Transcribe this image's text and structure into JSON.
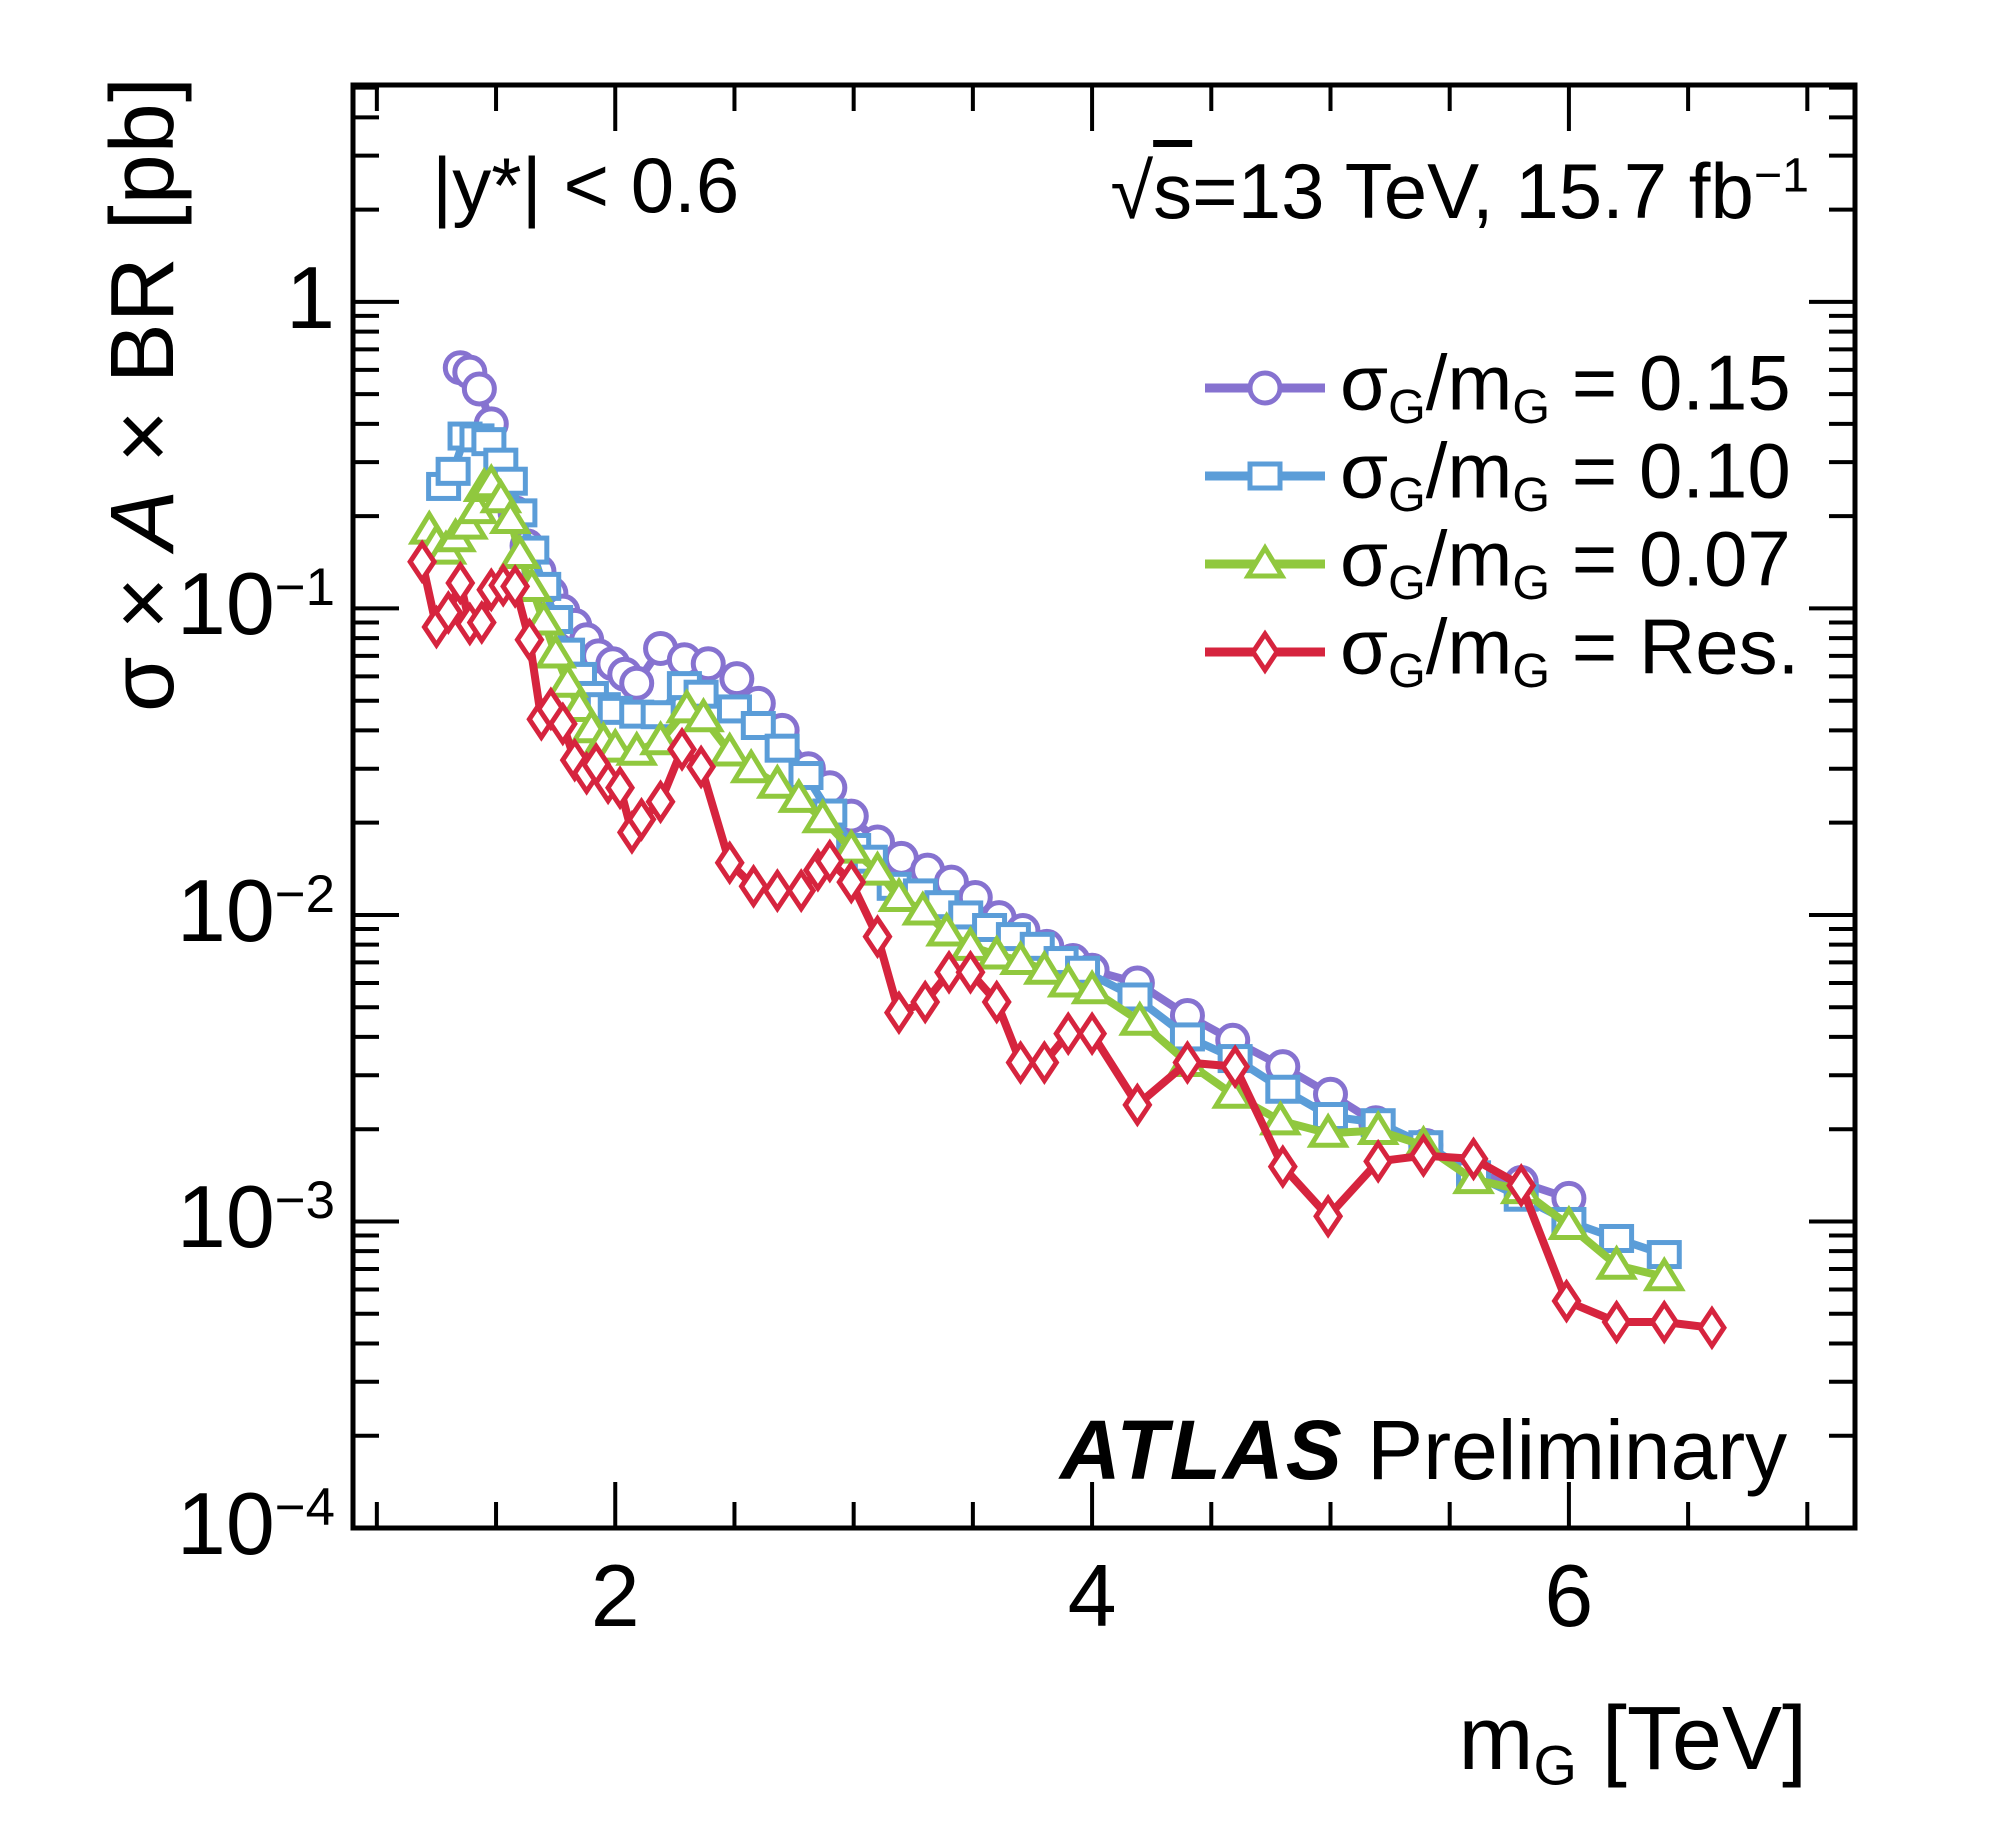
{
  "labels": {
    "y_title_sigma": "σ × ",
    "y_title_A": "A",
    "y_title_rest": " × BR [pb]",
    "x_title_m": "m",
    "x_title_sub": "G",
    "x_title_rest": " [TeV]",
    "rapidity": "|y*| < 0.6",
    "energy_sqrt": "√",
    "energy_s": "s",
    "energy_rest": "=13 TeV, 15.7 fb",
    "energy_exp": "−1",
    "atlas": "ATLAS",
    "preliminary": "Preliminary",
    "legend_parts": {
      "sigma": "σ",
      "sub": "G",
      "slash": "/m",
      "eq": " = "
    },
    "x_ticks": [
      "2",
      "4",
      "6"
    ],
    "y_ticks": [
      {
        "base": "1",
        "exp": "",
        "value": 1
      },
      {
        "base": "10",
        "exp": "−1",
        "value": 0.1
      },
      {
        "base": "10",
        "exp": "−2",
        "value": 0.01
      },
      {
        "base": "10",
        "exp": "−3",
        "value": 0.001
      },
      {
        "base": "10",
        "exp": "−4",
        "value": 0.0001
      }
    ]
  },
  "chart_data": {
    "type": "line",
    "title": "",
    "xlabel": "mG [TeV]",
    "ylabel": "σ × A × BR [pb]",
    "annotations": [
      "|y*| < 0.6",
      "√s=13 TeV, 15.7 fb−1",
      "ATLAS Preliminary"
    ],
    "legend_position": "upper right",
    "grid": false,
    "x_axis": {
      "scale": "linear",
      "range": [
        0.9,
        7.2
      ],
      "major_ticks": [
        2,
        4,
        6
      ],
      "minor_ticks": [
        1.0,
        1.5,
        2.5,
        3.0,
        3.5,
        4.5,
        5.0,
        5.5,
        6.5,
        7.0
      ]
    },
    "y_axis": {
      "scale": "log",
      "range": [
        0.0001,
        5.1
      ],
      "major_ticks": [
        1,
        0.1,
        0.01,
        0.001,
        0.0001
      ]
    },
    "series": [
      {
        "name": "σG/mG = 0.15",
        "value_label": "0.15",
        "marker": "circle",
        "color": "#8672D0",
        "points": [
          [
            1.35,
            0.61
          ],
          [
            1.39,
            0.59
          ],
          [
            1.43,
            0.52
          ],
          [
            1.48,
            0.4
          ],
          [
            1.53,
            0.27
          ],
          [
            1.58,
            0.205
          ],
          [
            1.63,
            0.16
          ],
          [
            1.68,
            0.132
          ],
          [
            1.73,
            0.112
          ],
          [
            1.78,
            0.098
          ],
          [
            1.83,
            0.088
          ],
          [
            1.88,
            0.079
          ],
          [
            1.93,
            0.07
          ],
          [
            1.99,
            0.066
          ],
          [
            2.04,
            0.061
          ],
          [
            2.09,
            0.057
          ],
          [
            2.19,
            0.074
          ],
          [
            2.29,
            0.068
          ],
          [
            2.39,
            0.066
          ],
          [
            2.51,
            0.059
          ],
          [
            2.6,
            0.049
          ],
          [
            2.7,
            0.04
          ],
          [
            2.81,
            0.03
          ],
          [
            2.9,
            0.026
          ],
          [
            2.99,
            0.021
          ],
          [
            3.1,
            0.0173
          ],
          [
            3.2,
            0.0153
          ],
          [
            3.31,
            0.014
          ],
          [
            3.41,
            0.0128
          ],
          [
            3.51,
            0.0114
          ],
          [
            3.61,
            0.0098
          ],
          [
            3.71,
            0.0089
          ],
          [
            3.81,
            0.0079
          ],
          [
            3.92,
            0.0071
          ],
          [
            4.0,
            0.0066
          ],
          [
            4.19,
            0.006
          ],
          [
            4.4,
            0.0047
          ],
          [
            4.59,
            0.0039
          ],
          [
            4.8,
            0.0032
          ],
          [
            5.0,
            0.0026
          ],
          [
            5.19,
            0.0021
          ],
          [
            5.4,
            0.00177
          ],
          [
            5.6,
            0.00142
          ],
          [
            5.8,
            0.00134
          ],
          [
            6.0,
            0.00119
          ]
        ]
      },
      {
        "name": "σG/mG = 0.10",
        "value_label": "0.10",
        "marker": "square",
        "color": "#5B9DD8",
        "points": [
          [
            1.28,
            0.25
          ],
          [
            1.32,
            0.28
          ],
          [
            1.37,
            0.365
          ],
          [
            1.42,
            0.36
          ],
          [
            1.47,
            0.35
          ],
          [
            1.52,
            0.3
          ],
          [
            1.56,
            0.26
          ],
          [
            1.6,
            0.205
          ],
          [
            1.65,
            0.155
          ],
          [
            1.7,
            0.118
          ],
          [
            1.75,
            0.092
          ],
          [
            1.8,
            0.072
          ],
          [
            1.85,
            0.06
          ],
          [
            1.9,
            0.052
          ],
          [
            1.95,
            0.0478
          ],
          [
            2.0,
            0.0465
          ],
          [
            2.09,
            0.0452
          ],
          [
            2.18,
            0.045
          ],
          [
            2.29,
            0.056
          ],
          [
            2.36,
            0.0525
          ],
          [
            2.5,
            0.047
          ],
          [
            2.6,
            0.0415
          ],
          [
            2.7,
            0.035
          ],
          [
            2.8,
            0.0285
          ],
          [
            2.9,
            0.0215
          ],
          [
            3.0,
            0.0166
          ],
          [
            3.07,
            0.0152
          ],
          [
            3.17,
            0.0124
          ],
          [
            3.28,
            0.0118
          ],
          [
            3.37,
            0.0108
          ],
          [
            3.47,
            0.01
          ],
          [
            3.57,
            0.0091
          ],
          [
            3.67,
            0.0085
          ],
          [
            3.77,
            0.0079
          ],
          [
            3.87,
            0.0071
          ],
          [
            3.96,
            0.0066
          ],
          [
            4.18,
            0.0054
          ],
          [
            4.4,
            0.004
          ],
          [
            4.6,
            0.0034
          ],
          [
            4.8,
            0.0027
          ],
          [
            5.0,
            0.0022
          ],
          [
            5.2,
            0.0021
          ],
          [
            5.4,
            0.00178
          ],
          [
            5.6,
            0.00142
          ],
          [
            5.8,
            0.0012
          ],
          [
            6.0,
            0.001
          ],
          [
            6.2,
            0.00088
          ],
          [
            6.4,
            0.00078
          ]
        ]
      },
      {
        "name": "σG/mG = 0.07",
        "value_label": "0.07",
        "marker": "triangle",
        "color": "#90C83E",
        "points": [
          [
            1.22,
            0.18
          ],
          [
            1.25,
            0.163
          ],
          [
            1.29,
            0.155
          ],
          [
            1.33,
            0.17
          ],
          [
            1.38,
            0.187
          ],
          [
            1.42,
            0.21
          ],
          [
            1.45,
            0.248
          ],
          [
            1.48,
            0.255
          ],
          [
            1.52,
            0.228
          ],
          [
            1.56,
            0.195
          ],
          [
            1.6,
            0.15
          ],
          [
            1.65,
            0.117
          ],
          [
            1.7,
            0.091
          ],
          [
            1.75,
            0.071
          ],
          [
            1.8,
            0.057
          ],
          [
            1.85,
            0.0475
          ],
          [
            1.9,
            0.0405
          ],
          [
            1.95,
            0.0368
          ],
          [
            2.0,
            0.035
          ],
          [
            2.09,
            0.0342
          ],
          [
            2.19,
            0.037
          ],
          [
            2.3,
            0.047
          ],
          [
            2.37,
            0.044
          ],
          [
            2.48,
            0.034
          ],
          [
            2.57,
            0.03
          ],
          [
            2.68,
            0.0267
          ],
          [
            2.77,
            0.024
          ],
          [
            2.87,
            0.0206
          ],
          [
            2.99,
            0.0164
          ],
          [
            3.1,
            0.0139
          ],
          [
            3.19,
            0.0114
          ],
          [
            3.29,
            0.0103
          ],
          [
            3.39,
            0.0088
          ],
          [
            3.49,
            0.0079
          ],
          [
            3.6,
            0.0074
          ],
          [
            3.7,
            0.0071
          ],
          [
            3.8,
            0.0066
          ],
          [
            3.9,
            0.006
          ],
          [
            4.0,
            0.0057
          ],
          [
            4.2,
            0.0045
          ],
          [
            4.4,
            0.0033
          ],
          [
            4.59,
            0.0026
          ],
          [
            4.79,
            0.00213
          ],
          [
            4.99,
            0.00194
          ],
          [
            5.2,
            0.00198
          ],
          [
            5.39,
            0.00177
          ],
          [
            5.6,
            0.00137
          ],
          [
            5.8,
            0.00127
          ],
          [
            6.0,
            0.00097
          ],
          [
            6.2,
            0.00072
          ],
          [
            6.4,
            0.00066
          ]
        ]
      },
      {
        "name": "σG/mG = Res.",
        "value_label": "Res.",
        "marker": "diamond",
        "color": "#D6243E",
        "points": [
          [
            1.19,
            0.142
          ],
          [
            1.25,
            0.087
          ],
          [
            1.3,
            0.097
          ],
          [
            1.35,
            0.121
          ],
          [
            1.39,
            0.089
          ],
          [
            1.44,
            0.09
          ],
          [
            1.48,
            0.115
          ],
          [
            1.53,
            0.119
          ],
          [
            1.58,
            0.118
          ],
          [
            1.64,
            0.079
          ],
          [
            1.69,
            0.0435
          ],
          [
            1.73,
            0.047
          ],
          [
            1.78,
            0.042
          ],
          [
            1.83,
            0.032
          ],
          [
            1.88,
            0.029
          ],
          [
            1.92,
            0.031
          ],
          [
            1.97,
            0.027
          ],
          [
            2.02,
            0.026
          ],
          [
            2.07,
            0.0186
          ],
          [
            2.11,
            0.0205
          ],
          [
            2.19,
            0.0234
          ],
          [
            2.28,
            0.0347
          ],
          [
            2.36,
            0.0304
          ],
          [
            2.48,
            0.0148
          ],
          [
            2.58,
            0.0124
          ],
          [
            2.68,
            0.012
          ],
          [
            2.78,
            0.012
          ],
          [
            2.85,
            0.014
          ],
          [
            2.9,
            0.015
          ],
          [
            2.99,
            0.0128
          ],
          [
            3.1,
            0.0085
          ],
          [
            3.19,
            0.0048
          ],
          [
            3.3,
            0.0052
          ],
          [
            3.4,
            0.0065
          ],
          [
            3.49,
            0.0065
          ],
          [
            3.6,
            0.0052
          ],
          [
            3.7,
            0.0033
          ],
          [
            3.8,
            0.0033
          ],
          [
            3.9,
            0.0041
          ],
          [
            4.0,
            0.0041
          ],
          [
            4.19,
            0.0024
          ],
          [
            4.4,
            0.0033
          ],
          [
            4.6,
            0.0032
          ],
          [
            4.8,
            0.00151
          ],
          [
            4.99,
            0.00104
          ],
          [
            5.2,
            0.00157
          ],
          [
            5.39,
            0.00164
          ],
          [
            5.6,
            0.0016
          ],
          [
            5.8,
            0.00131
          ],
          [
            5.99,
            0.00055
          ],
          [
            6.2,
            0.00047
          ],
          [
            6.4,
            0.00047
          ],
          [
            6.6,
            0.00045
          ]
        ]
      }
    ]
  }
}
